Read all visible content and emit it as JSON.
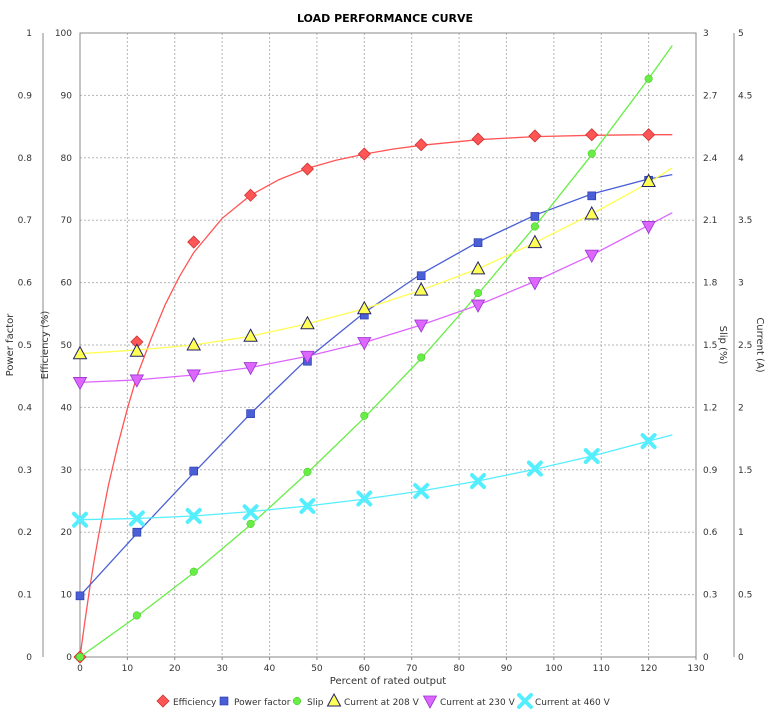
{
  "chart_data": {
    "type": "line",
    "title": "LOAD PERFORMANCE CURVE",
    "xlabel": "Percent of rated output",
    "xlim": [
      0,
      130
    ],
    "x_ticks": [
      "0",
      "10",
      "20",
      "30",
      "40",
      "50",
      "60",
      "70",
      "80",
      "90",
      "100",
      "110",
      "120",
      "130"
    ],
    "grid": true,
    "legend_position": "bottom",
    "axes": {
      "pf": {
        "label": "Power factor",
        "range": [
          0,
          1
        ],
        "ticks": [
          "0",
          "0.1",
          "0.2",
          "0.3",
          "0.4",
          "0.5",
          "0.6",
          "0.7",
          "0.8",
          "0.9",
          "1"
        ]
      },
      "eff": {
        "label": "Efficiency (%)",
        "range": [
          0,
          100
        ],
        "ticks": [
          "0",
          "10",
          "20",
          "30",
          "40",
          "50",
          "60",
          "70",
          "80",
          "90",
          "100"
        ]
      },
      "slip": {
        "label": "Slip (%)",
        "range": [
          0,
          3
        ],
        "ticks": [
          "0",
          "0.3",
          "0.6",
          "0.9",
          "1.2",
          "1.5",
          "1.8",
          "2.1",
          "2.4",
          "2.7",
          "3"
        ]
      },
      "cur": {
        "label": "Current (A)",
        "range": [
          0,
          5
        ],
        "ticks": [
          "0",
          "0.5",
          "1",
          "1.5",
          "2",
          "2.5",
          "3",
          "3.5",
          "4",
          "4.5",
          "5"
        ]
      }
    },
    "x": [
      0,
      12,
      24,
      36,
      48,
      60,
      72,
      84,
      96,
      108,
      120
    ],
    "series": [
      {
        "name": "Efficiency",
        "axis": "eff",
        "color": "#ff5555",
        "marker": "diamond",
        "values": [
          0,
          50.5,
          66.5,
          74,
          78.2,
          80.6,
          82.1,
          83,
          83.5,
          83.7,
          83.7
        ],
        "curve": [
          [
            0,
            0
          ],
          [
            1,
            5.5
          ],
          [
            2,
            10.8
          ],
          [
            3,
            15.5
          ],
          [
            4,
            19.8
          ],
          [
            6,
            27.5
          ],
          [
            8,
            34
          ],
          [
            10,
            39.8
          ],
          [
            12,
            45
          ],
          [
            15,
            51
          ],
          [
            18,
            56.5
          ],
          [
            21,
            61
          ],
          [
            24,
            64.8
          ],
          [
            30,
            70.3
          ],
          [
            36,
            74
          ],
          [
            42,
            76.5
          ],
          [
            48,
            78.3
          ],
          [
            54,
            79.6
          ],
          [
            60,
            80.6
          ],
          [
            66,
            81.4
          ],
          [
            72,
            82
          ],
          [
            84,
            82.9
          ],
          [
            96,
            83.4
          ],
          [
            108,
            83.6
          ],
          [
            120,
            83.7
          ],
          [
            125,
            83.7
          ]
        ]
      },
      {
        "name": "Power factor",
        "axis": "pf",
        "color": "#4a5fd5",
        "marker": "square",
        "values": [
          0.098,
          0.2,
          0.298,
          0.39,
          0.474,
          0.548,
          0.611,
          0.664,
          0.706,
          0.739,
          0.764
        ],
        "curve": [
          [
            0,
            0.098
          ],
          [
            12,
            0.198
          ],
          [
            24,
            0.295
          ],
          [
            36,
            0.39
          ],
          [
            48,
            0.478
          ],
          [
            60,
            0.552
          ],
          [
            72,
            0.614
          ],
          [
            84,
            0.665
          ],
          [
            96,
            0.708
          ],
          [
            108,
            0.742
          ],
          [
            120,
            0.766
          ],
          [
            125,
            0.773
          ]
        ]
      },
      {
        "name": "Slip",
        "axis": "slip",
        "color": "#66ee44",
        "marker": "circle",
        "values": [
          0,
          0.2,
          0.41,
          0.64,
          0.89,
          1.16,
          1.44,
          1.75,
          2.07,
          2.42,
          2.78
        ],
        "curve": [
          [
            0,
            0
          ],
          [
            12,
            0.195
          ],
          [
            24,
            0.405
          ],
          [
            36,
            0.635
          ],
          [
            48,
            0.885
          ],
          [
            60,
            1.15
          ],
          [
            72,
            1.435
          ],
          [
            84,
            1.745
          ],
          [
            96,
            2.07
          ],
          [
            108,
            2.415
          ],
          [
            120,
            2.78
          ],
          [
            125,
            2.94
          ]
        ]
      },
      {
        "name": "Current at 208 V",
        "axis": "cur",
        "color": "#ffff55",
        "marker": "triangle-up",
        "values": [
          2.43,
          2.45,
          2.5,
          2.57,
          2.67,
          2.79,
          2.94,
          3.11,
          3.32,
          3.55,
          3.81
        ],
        "curve": [
          [
            0,
            2.43
          ],
          [
            12,
            2.46
          ],
          [
            24,
            2.5
          ],
          [
            36,
            2.57
          ],
          [
            48,
            2.67
          ],
          [
            60,
            2.79
          ],
          [
            72,
            2.94
          ],
          [
            84,
            3.11
          ],
          [
            96,
            3.32
          ],
          [
            108,
            3.55
          ],
          [
            120,
            3.8
          ],
          [
            125,
            3.92
          ]
        ]
      },
      {
        "name": "Current at 230 V",
        "axis": "cur",
        "color": "#dd66ff",
        "marker": "triangle-down",
        "values": [
          2.2,
          2.22,
          2.26,
          2.32,
          2.41,
          2.52,
          2.66,
          2.82,
          3.0,
          3.22,
          3.45
        ],
        "curve": [
          [
            0,
            2.2
          ],
          [
            12,
            2.22
          ],
          [
            24,
            2.26
          ],
          [
            36,
            2.32
          ],
          [
            48,
            2.41
          ],
          [
            60,
            2.52
          ],
          [
            72,
            2.66
          ],
          [
            84,
            2.82
          ],
          [
            96,
            3.01
          ],
          [
            108,
            3.22
          ],
          [
            120,
            3.46
          ],
          [
            125,
            3.56
          ]
        ]
      },
      {
        "name": "Current at 460 V",
        "axis": "cur",
        "color": "#55eeff",
        "marker": "x",
        "values": [
          1.1,
          1.11,
          1.13,
          1.16,
          1.21,
          1.27,
          1.33,
          1.41,
          1.51,
          1.61,
          1.73
        ],
        "curve": [
          [
            0,
            1.1
          ],
          [
            12,
            1.11
          ],
          [
            24,
            1.13
          ],
          [
            36,
            1.165
          ],
          [
            48,
            1.21
          ],
          [
            60,
            1.265
          ],
          [
            72,
            1.33
          ],
          [
            84,
            1.41
          ],
          [
            96,
            1.505
          ],
          [
            108,
            1.61
          ],
          [
            120,
            1.73
          ],
          [
            125,
            1.78
          ]
        ]
      }
    ]
  }
}
